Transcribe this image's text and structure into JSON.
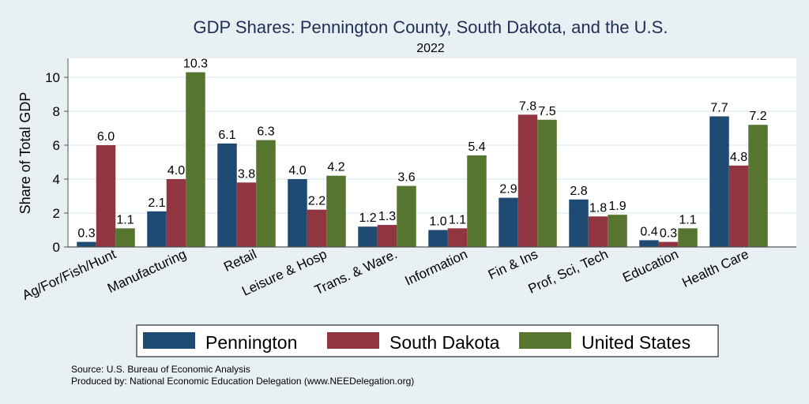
{
  "chart_data": {
    "type": "bar",
    "title": "GDP Shares: Pennington County, South Dakota, and the U.S.",
    "subtitle": "2022",
    "xlabel": "",
    "ylabel": "Share of Total GDP",
    "ylim": [
      0,
      11
    ],
    "yticks": [
      0,
      2,
      4,
      6,
      8,
      10
    ],
    "grid": true,
    "legend_position": "bottom",
    "categories": [
      "Ag/For/Fish/Hunt",
      "Manufacturing",
      "Retail",
      "Leisure & Hosp",
      "Trans. & Ware.",
      "Information",
      "Fin & Ins",
      "Prof, Sci, Tech",
      "Education",
      "Health Care"
    ],
    "series": [
      {
        "name": "Pennington",
        "color": "#1f4a73",
        "values": [
          0.3,
          2.1,
          6.1,
          4.0,
          1.2,
          1.0,
          2.9,
          2.8,
          0.4,
          7.7
        ]
      },
      {
        "name": "South Dakota",
        "color": "#913540",
        "values": [
          6.0,
          4.0,
          3.8,
          2.2,
          1.3,
          1.1,
          7.8,
          1.8,
          0.3,
          4.8
        ]
      },
      {
        "name": "United States",
        "color": "#56752f",
        "values": [
          1.1,
          10.3,
          6.3,
          4.2,
          3.6,
          5.4,
          7.5,
          1.9,
          1.1,
          7.2
        ]
      }
    ]
  },
  "notes": {
    "source": "Source: U.S. Bureau of Economic Analysis",
    "produced": "Produced by: National Economic Education Delegation (www.NEEDelegation.org)"
  }
}
